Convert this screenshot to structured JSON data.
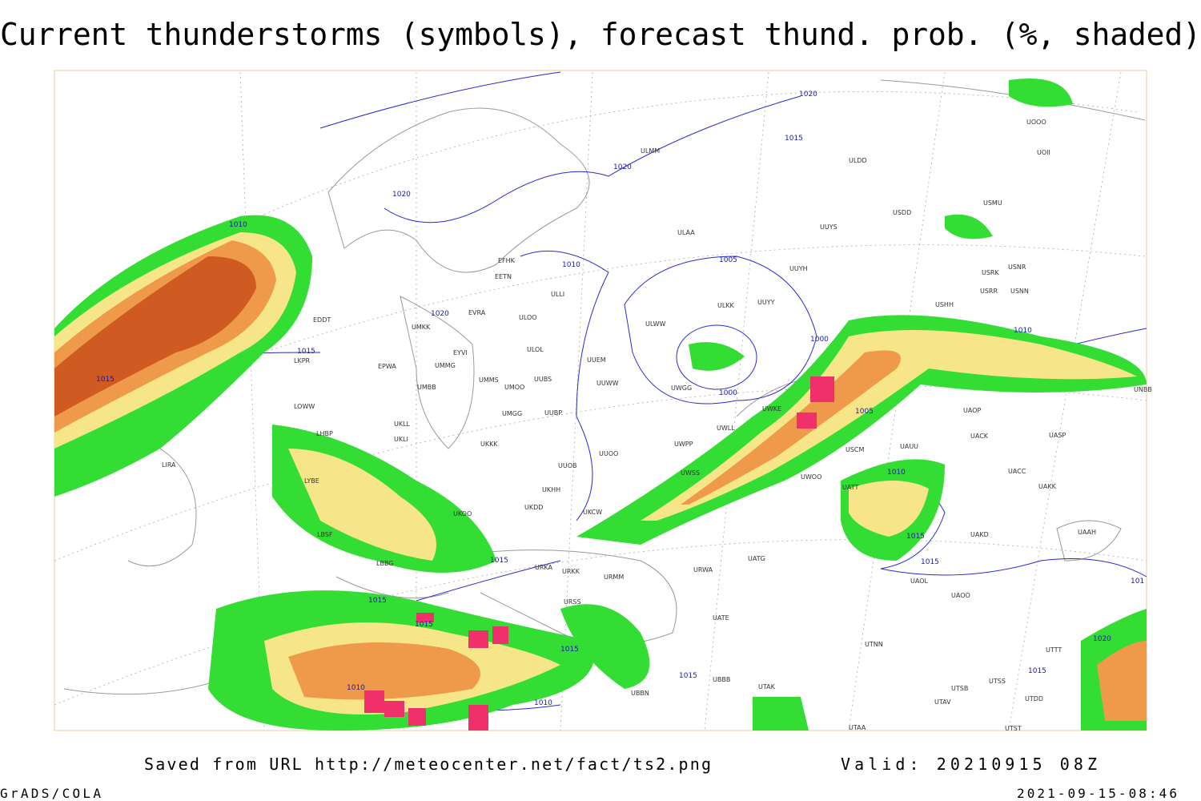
{
  "title": "Current thunderstorms (symbols), forecast thund. prob. (%, shaded)",
  "footer": {
    "source": "Saved from URL http://meteocenter.net/fact/ts2.png",
    "valid": "Valid: 20210915 08Z",
    "software": "GrADS/COLA",
    "timestamp": "2021-09-15-08:46"
  },
  "isobar_labels": [
    "1020",
    "1015",
    "1020",
    "1020",
    "1010",
    "1010",
    "1005",
    "1020",
    "1015",
    "1015",
    "1000",
    "1010",
    "1000",
    "1005",
    "1010",
    "1015",
    "1015",
    "1015",
    "1015",
    "1015",
    "1015",
    "1015",
    "1010",
    "1010",
    "1015",
    "1020",
    "101"
  ],
  "stations": [
    "ULMM",
    "ULDD",
    "UOII",
    "UOOO",
    "USDD",
    "USMU",
    "ULAA",
    "UUYS",
    "USRK",
    "USNR",
    "UUYH",
    "USRR",
    "USNN",
    "USHH",
    "EFHK",
    "EETN",
    "ULLI",
    "ULKK",
    "UUYY",
    "EVRA",
    "UMKK",
    "ULOO",
    "ULWW",
    "EYVI",
    "ULOL",
    "UUEM",
    "EPWA",
    "UMMG",
    "UMMS",
    "UMOO",
    "UUBS",
    "UUWW",
    "UWGG",
    "UMBB",
    "UMGG",
    "UUBP",
    "UWKE",
    "UWLL",
    "UKLL",
    "UKLI",
    "UKKK",
    "UUOO",
    "UWPP",
    "USCM",
    "UAUU",
    "UACK",
    "UASP",
    "UAOP",
    "UNBB",
    "UUOB",
    "UWSS",
    "UWOO",
    "UATT",
    "UKHH",
    "UKDD",
    "UKOO",
    "UKCW",
    "UACC",
    "UAKK",
    "UAKD",
    "UAAH",
    "UATG",
    "UAOL",
    "UAOO",
    "URKA",
    "URKK",
    "URWA",
    "URMM",
    "UATE",
    "URSS",
    "UTNN",
    "UTTT",
    "UTAK",
    "UBBB",
    "UTSB",
    "UTSS",
    "UTAV",
    "UTAA",
    "UTST",
    "UTDD",
    "UBBN",
    "LIRA",
    "LOWW",
    "LKPR",
    "EDDT",
    "LBSF",
    "LBBG",
    "LYBE",
    "LHBP"
  ]
}
